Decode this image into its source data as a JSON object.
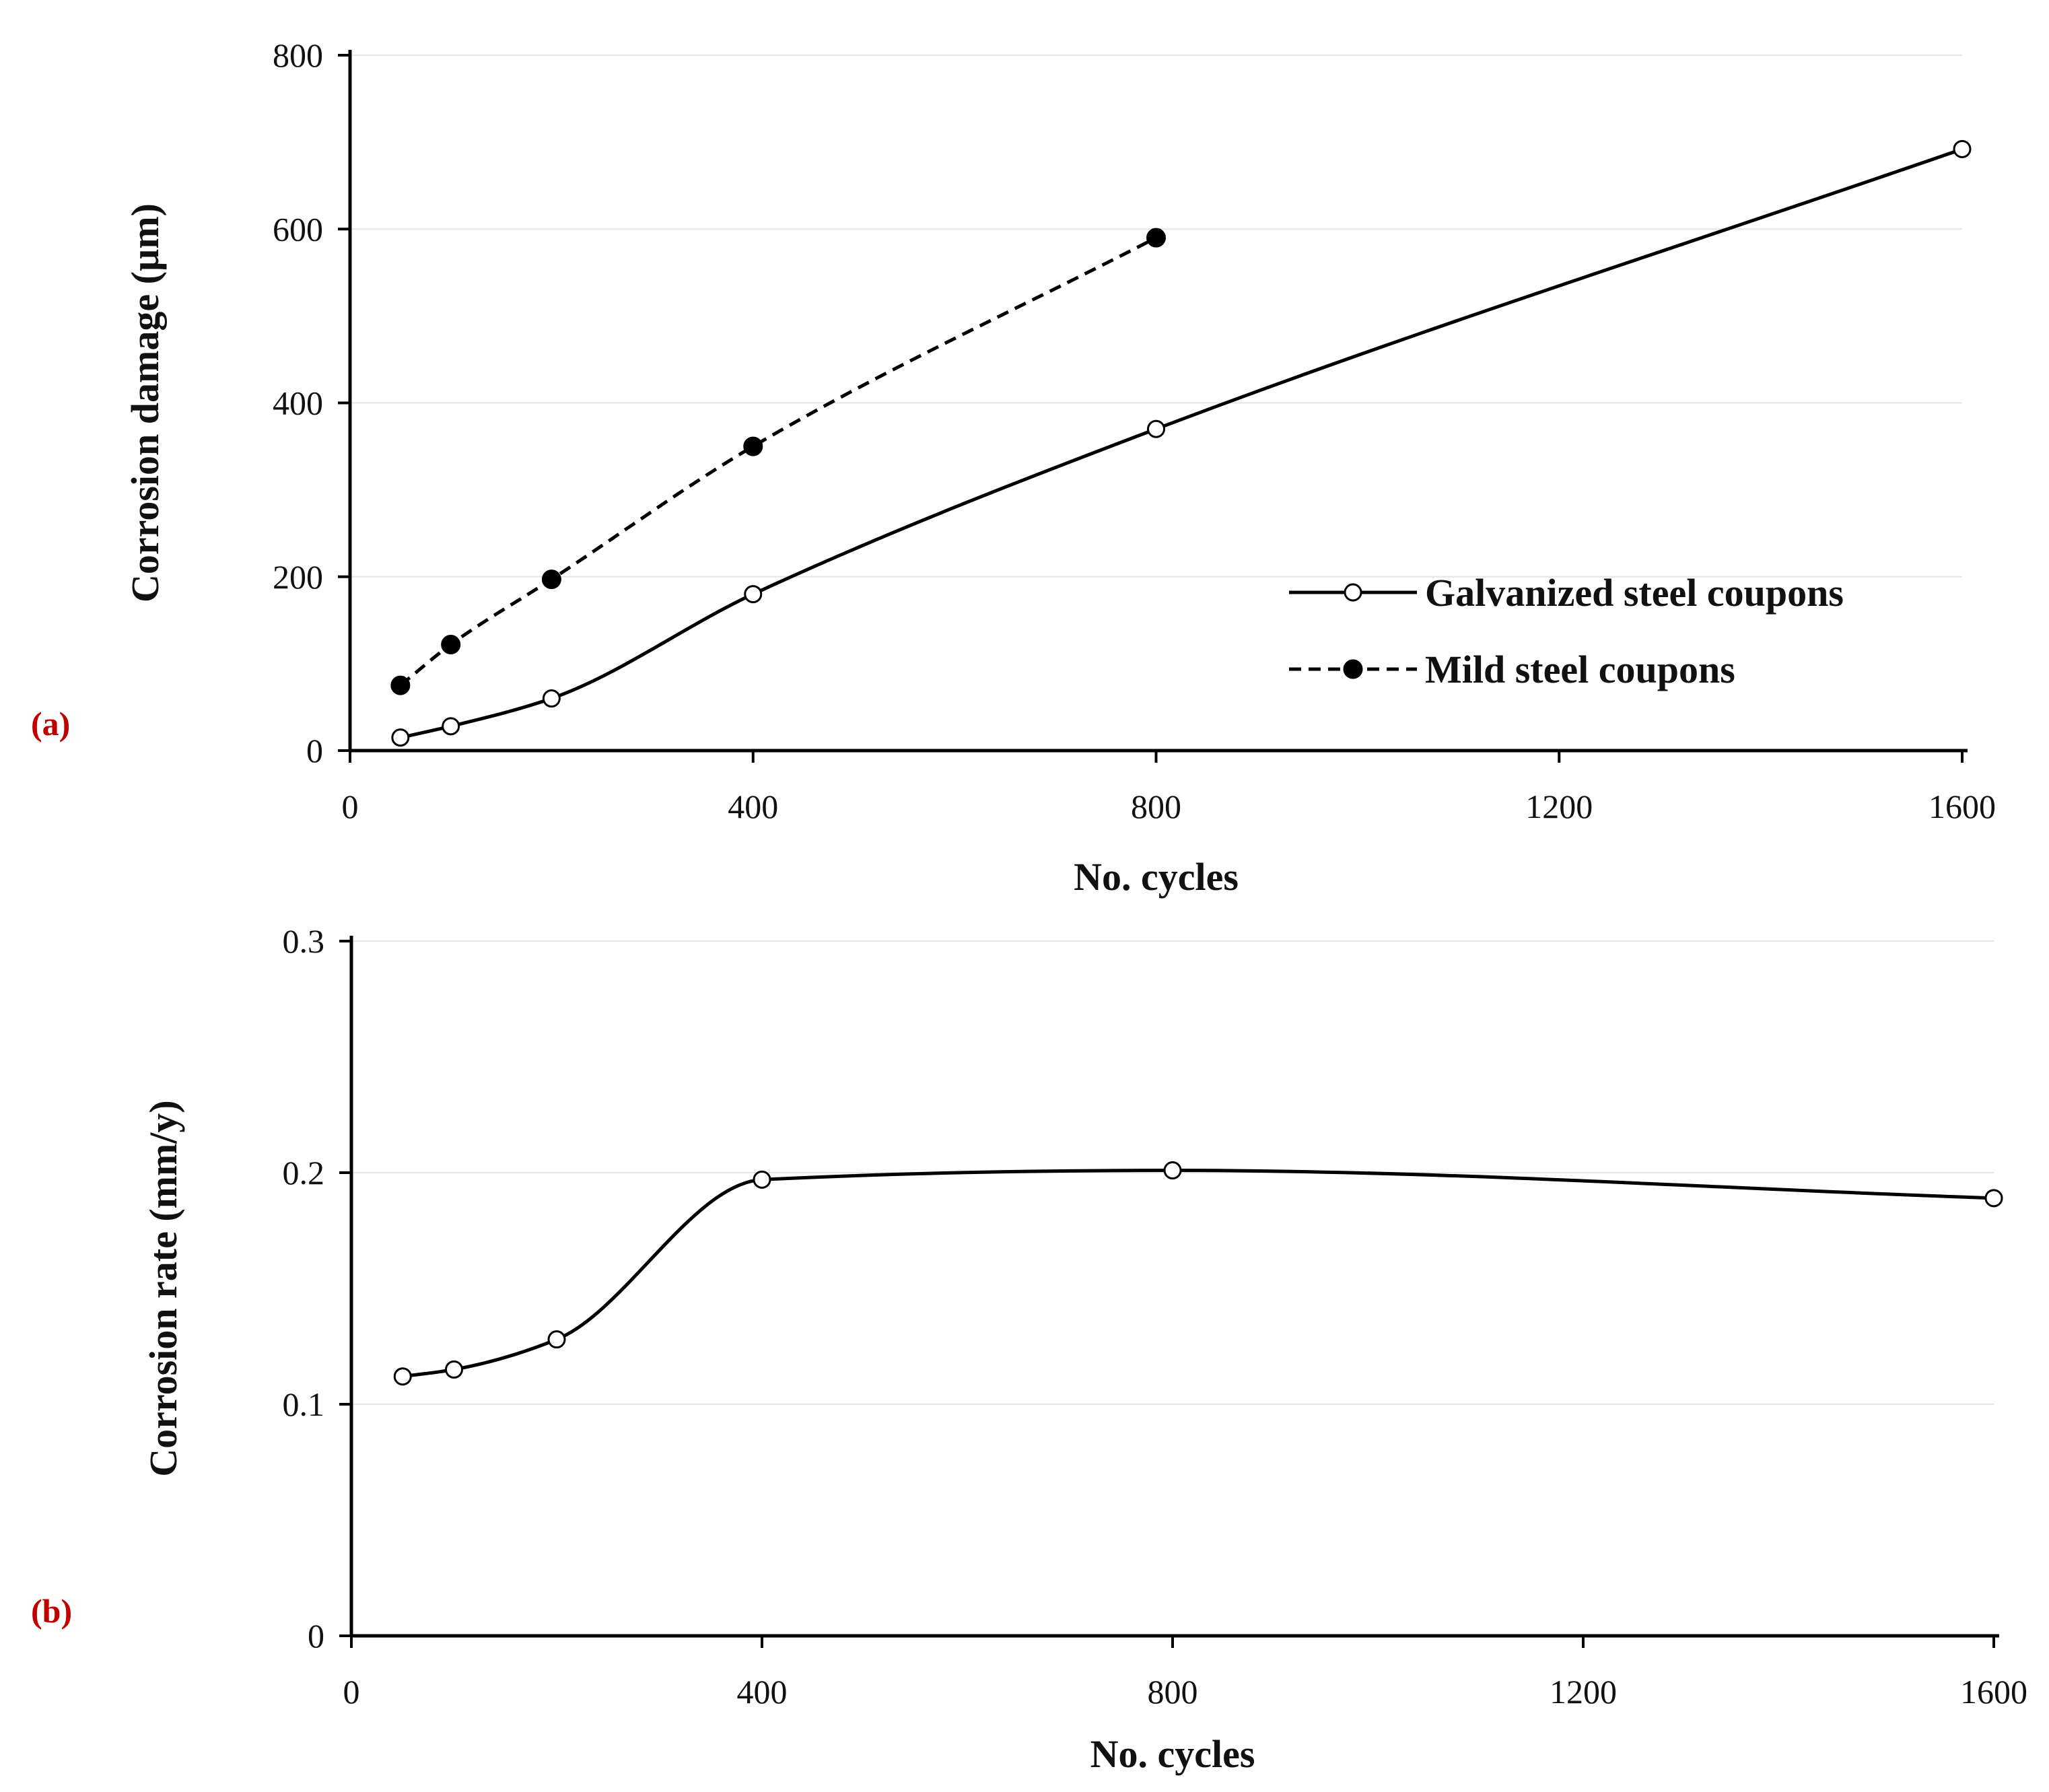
{
  "colors": {
    "panel_label": "#c00000",
    "series_line": "#000000",
    "gridline": "#e6e6e6",
    "axis": "#000000"
  },
  "chart_data": [
    {
      "type": "line",
      "panel_label": "(a)",
      "title": "",
      "xlabel": "No. cycles",
      "ylabel": "Corrosion damage (µm)",
      "xlim": [
        0,
        1600
      ],
      "ylim": [
        0,
        800
      ],
      "xticks": [
        0,
        400,
        800,
        1200,
        1600
      ],
      "yticks": [
        0,
        200,
        400,
        600,
        800
      ],
      "xtick_labels": [
        "0",
        "400",
        "800",
        "1200",
        "1600"
      ],
      "ytick_labels": [
        "0",
        "200",
        "400",
        "600",
        "800"
      ],
      "grid": "horizontal",
      "legend_position": "bottom-right",
      "series": [
        {
          "name": "Galvanized steel coupons",
          "style": "solid",
          "marker": "open-circle",
          "x": [
            50,
            100,
            200,
            400,
            800,
            1600
          ],
          "y": [
            15,
            28,
            60,
            180,
            370,
            692
          ]
        },
        {
          "name": "Mild steel coupons",
          "style": "dashed",
          "marker": "filled-circle",
          "x": [
            50,
            100,
            200,
            400,
            800
          ],
          "y": [
            75,
            122,
            197,
            350,
            590
          ]
        }
      ]
    },
    {
      "type": "line",
      "panel_label": "(b)",
      "title": "",
      "xlabel": "No. cycles",
      "ylabel": "Corrosion rate (mm/y)",
      "xlim": [
        0,
        1600
      ],
      "ylim": [
        0,
        0.3
      ],
      "xticks": [
        0,
        400,
        800,
        1200,
        1600
      ],
      "yticks": [
        0,
        0.1,
        0.2,
        0.3
      ],
      "xtick_labels": [
        "0",
        "400",
        "800",
        "1200",
        "1600"
      ],
      "ytick_labels": [
        "0",
        "0.1",
        "0.2",
        "0.3"
      ],
      "grid": "horizontal",
      "legend_position": "none",
      "series": [
        {
          "name": "Galvanized steel coupons",
          "style": "solid",
          "marker": "open-circle",
          "x": [
            50,
            100,
            200,
            400,
            800,
            1600
          ],
          "y": [
            0.112,
            0.115,
            0.128,
            0.197,
            0.201,
            0.189
          ]
        }
      ]
    }
  ]
}
